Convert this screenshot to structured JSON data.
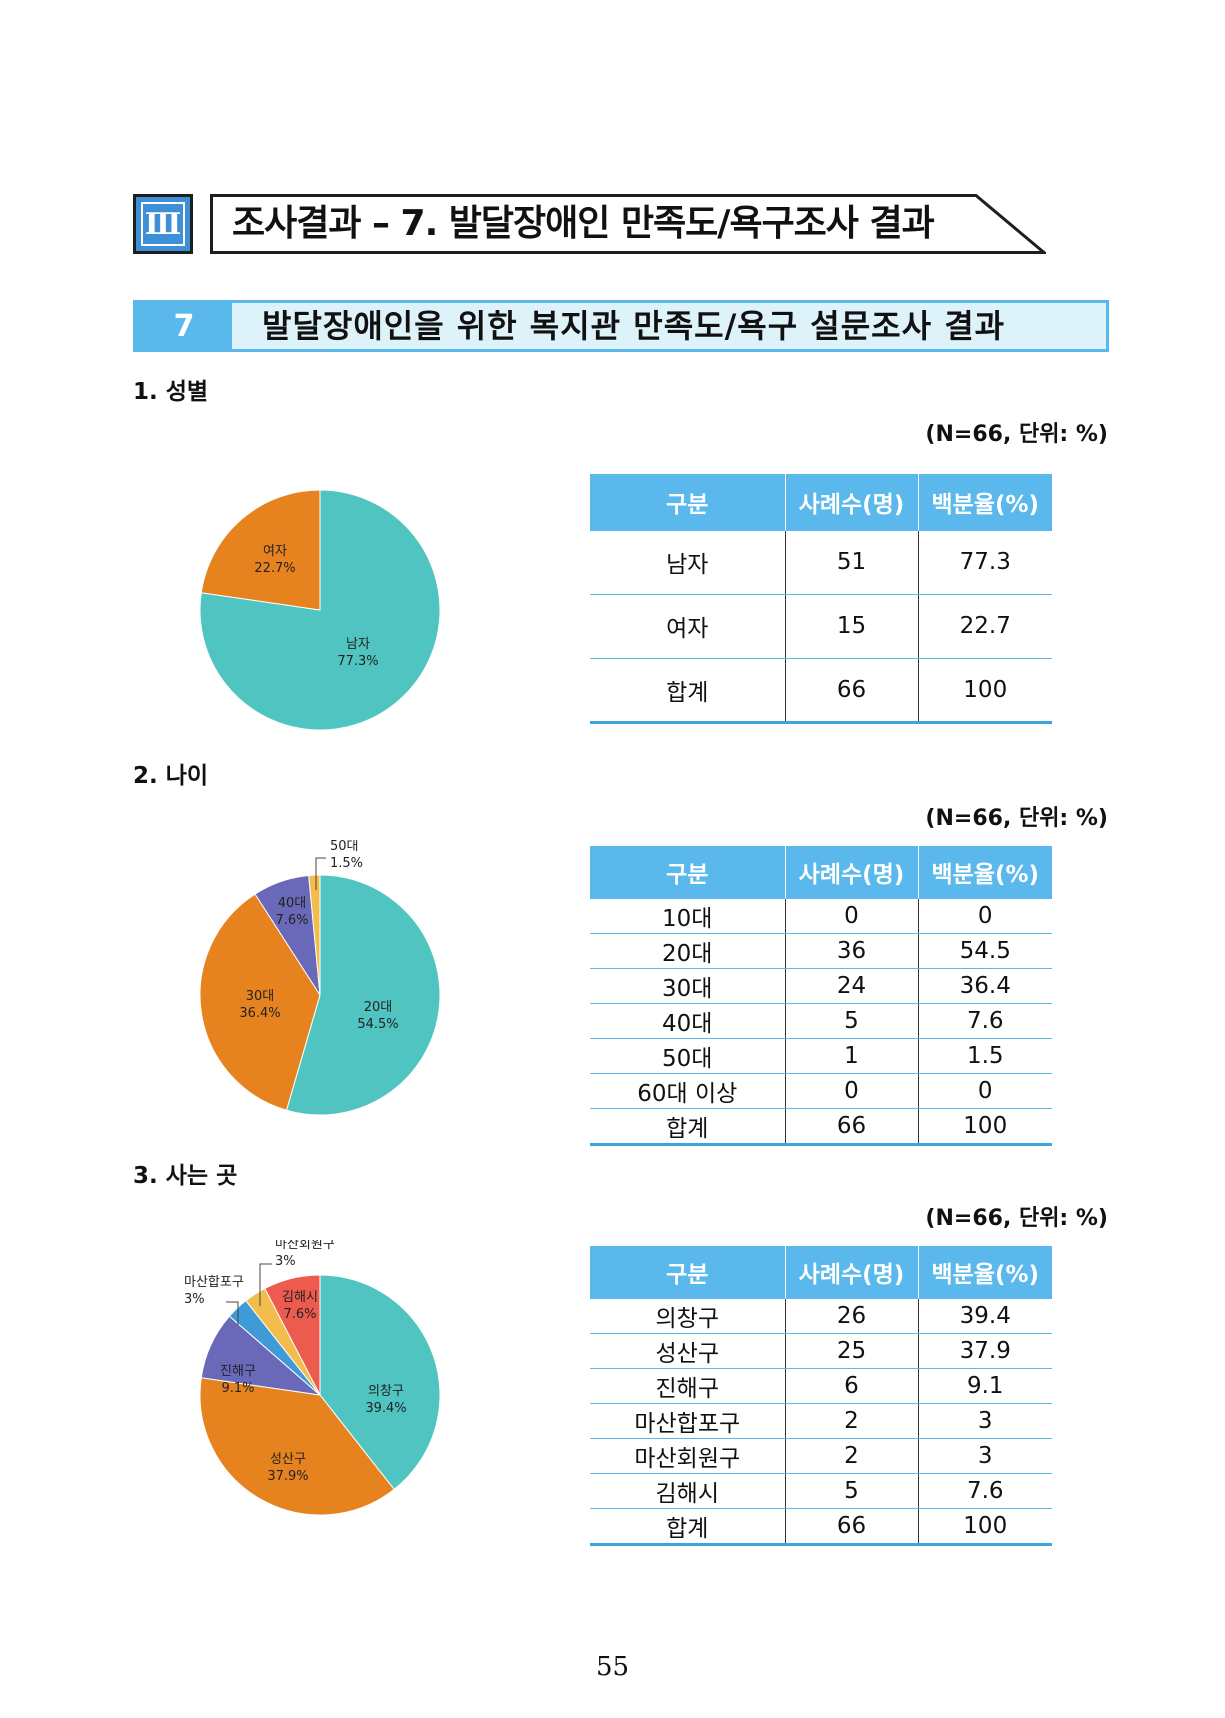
{
  "chapter": {
    "number": "Ⅲ",
    "title": "조사결과 – 7. 발달장애인 만족도/욕구조사 결과"
  },
  "section": {
    "number": "7",
    "title": "발달장애인을 위한 복지관 만족도/욕구 설문조사 결과"
  },
  "unit_note": "(N=66, 단위: %)",
  "columns": [
    "구분",
    "사례수(명)",
    "백분율(%)"
  ],
  "gender": {
    "heading": "1. 성별",
    "rows": [
      {
        "label": "남자",
        "count": "51",
        "pct": "77.3"
      },
      {
        "label": "여자",
        "count": "15",
        "pct": "22.7"
      },
      {
        "label": "합계",
        "count": "66",
        "pct": "100"
      }
    ]
  },
  "age": {
    "heading": "2. 나이",
    "rows": [
      {
        "label": "10대",
        "count": "0",
        "pct": "0"
      },
      {
        "label": "20대",
        "count": "36",
        "pct": "54.5"
      },
      {
        "label": "30대",
        "count": "24",
        "pct": "36.4"
      },
      {
        "label": "40대",
        "count": "5",
        "pct": "7.6"
      },
      {
        "label": "50대",
        "count": "1",
        "pct": "1.5"
      },
      {
        "label": "60대 이상",
        "count": "0",
        "pct": "0"
      },
      {
        "label": "합계",
        "count": "66",
        "pct": "100"
      }
    ]
  },
  "residence": {
    "heading": "3. 사는 곳",
    "rows": [
      {
        "label": "의창구",
        "count": "26",
        "pct": "39.4"
      },
      {
        "label": "성산구",
        "count": "25",
        "pct": "37.9"
      },
      {
        "label": "진해구",
        "count": "6",
        "pct": "9.1"
      },
      {
        "label": "마산합포구",
        "count": "2",
        "pct": "3"
      },
      {
        "label": "마산회원구",
        "count": "2",
        "pct": "3"
      },
      {
        "label": "김해시",
        "count": "5",
        "pct": "7.6"
      },
      {
        "label": "합계",
        "count": "66",
        "pct": "100"
      }
    ]
  },
  "chart_data": [
    {
      "type": "pie",
      "categories": [
        "남자",
        "여자"
      ],
      "values": [
        77.3,
        22.7
      ],
      "labels": [
        "77.3%",
        "22.7%"
      ],
      "colors": [
        "#4fc4c1",
        "#e6831f"
      ]
    },
    {
      "type": "pie",
      "categories": [
        "20대",
        "30대",
        "40대",
        "50대"
      ],
      "values": [
        54.5,
        36.4,
        7.6,
        1.5
      ],
      "labels": [
        "54.5%",
        "36.4%",
        "7.6%",
        "1.5%"
      ],
      "colors": [
        "#4fc4c1",
        "#e6831f",
        "#6a68b8",
        "#f3bd4e"
      ]
    },
    {
      "type": "pie",
      "categories": [
        "의창구",
        "성산구",
        "진해구",
        "마산합포구",
        "마산회원구",
        "김해시"
      ],
      "values": [
        39.4,
        37.9,
        9.1,
        3,
        3,
        7.6
      ],
      "labels": [
        "39.4%",
        "37.9%",
        "9.1%",
        "3%",
        "3%",
        "7.6%"
      ],
      "colors": [
        "#4fc4c1",
        "#e6831f",
        "#6a68b8",
        "#3f9ad8",
        "#f3bd4e",
        "#ec5b4e"
      ]
    }
  ],
  "page_number": "55"
}
